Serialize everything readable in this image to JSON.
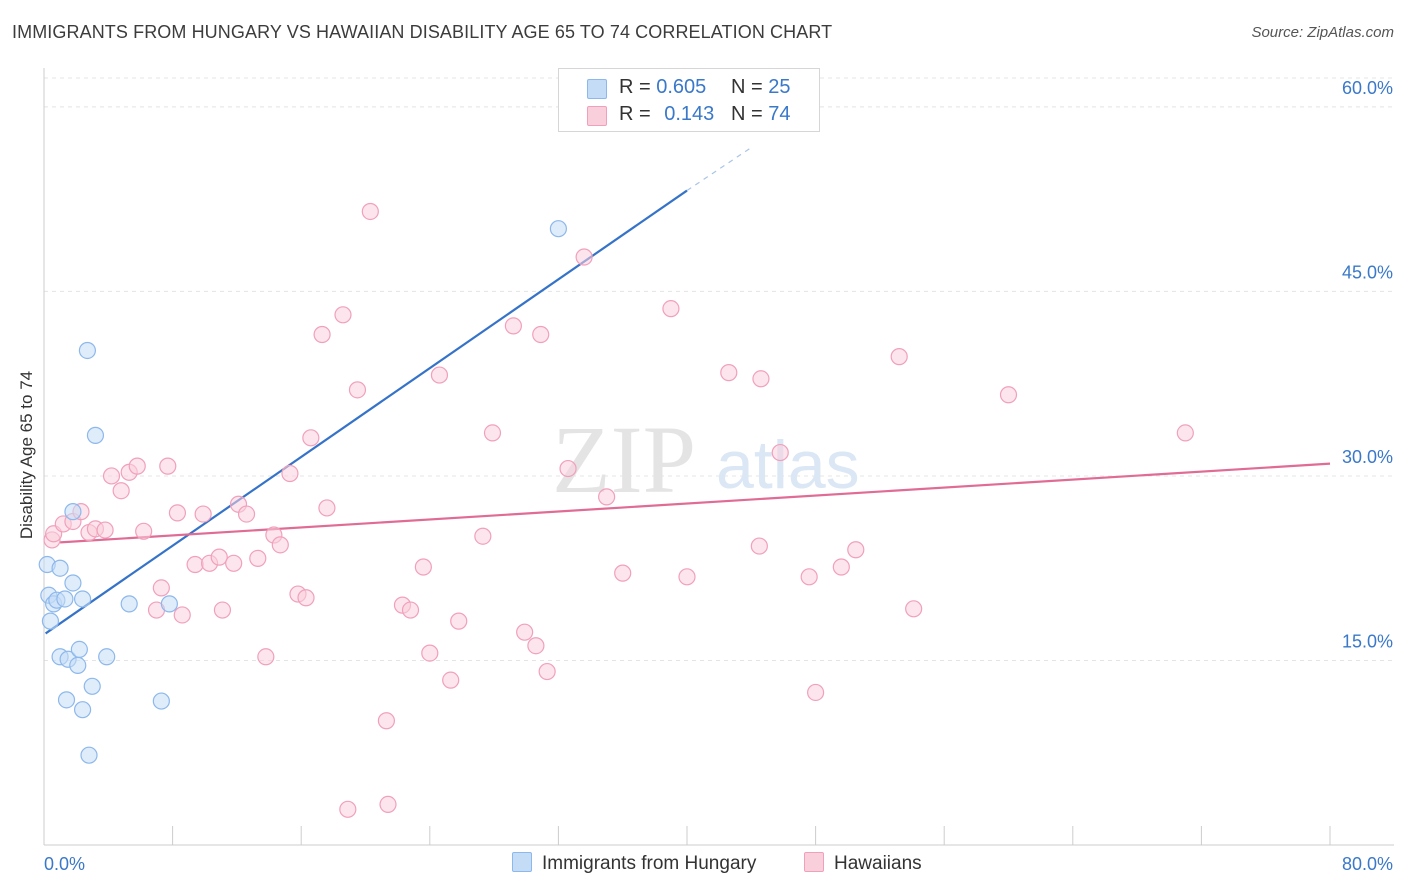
{
  "title": "IMMIGRANTS FROM HUNGARY VS HAWAIIAN DISABILITY AGE 65 TO 74 CORRELATION CHART",
  "source": "Source: ZipAtlas.com",
  "watermark": {
    "zip": "ZIP",
    "atlas": "atlas"
  },
  "legend": {
    "rows": [
      {
        "r_label": "R = ",
        "r_value": "0.605",
        "n_label": "N = ",
        "n_value": "25"
      },
      {
        "r_label": "R = ",
        "r_value": "0.143",
        "n_label": "N = ",
        "n_value": "74"
      }
    ]
  },
  "chart_data": {
    "type": "scatter",
    "title": "IMMIGRANTS FROM HUNGARY VS HAWAIIAN DISABILITY AGE 65 TO 74 CORRELATION CHART",
    "xlabel": "",
    "ylabel": "Disability Age 65 to 74",
    "xlim": [
      0,
      80
    ],
    "ylim": [
      0,
      63
    ],
    "x_tick_labels": [
      {
        "value": 0,
        "label": "0.0%"
      },
      {
        "value": 80,
        "label": "80.0%"
      }
    ],
    "x_minor_ticks": [
      0,
      8,
      16,
      24,
      32,
      40,
      48,
      56,
      64,
      72,
      80
    ],
    "y_ticks": [
      {
        "value": 15,
        "label": "15.0%"
      },
      {
        "value": 30,
        "label": "30.0%"
      },
      {
        "value": 45,
        "label": "45.0%"
      },
      {
        "value": 60,
        "label": "60.0%"
      }
    ],
    "grid": true,
    "legend_position": "bottom",
    "series": [
      {
        "name": "Immigrants from Hungary",
        "color": "#8db8ec",
        "fill": "#c5dcf6",
        "trend_color": "#3573c9",
        "trend": {
          "x0": 0.1,
          "y0": 17.2,
          "x1": 40.0,
          "y1": 53.2,
          "dash_to_x": 44.0,
          "dash_to_y": 56.7
        },
        "points": [
          [
            0.2,
            22.8
          ],
          [
            0.3,
            20.3
          ],
          [
            0.4,
            18.2
          ],
          [
            0.6,
            19.6
          ],
          [
            0.8,
            19.9
          ],
          [
            1.0,
            22.5
          ],
          [
            1.0,
            15.3
          ],
          [
            1.3,
            20.0
          ],
          [
            1.4,
            11.8
          ],
          [
            1.5,
            15.1
          ],
          [
            1.8,
            27.1
          ],
          [
            1.8,
            21.3
          ],
          [
            2.1,
            14.6
          ],
          [
            2.2,
            15.9
          ],
          [
            2.4,
            11.0
          ],
          [
            2.4,
            20.0
          ],
          [
            2.7,
            40.2
          ],
          [
            2.8,
            7.3
          ],
          [
            3.0,
            12.9
          ],
          [
            3.2,
            33.3
          ],
          [
            3.9,
            15.3
          ],
          [
            5.3,
            19.6
          ],
          [
            7.3,
            11.7
          ],
          [
            7.8,
            19.6
          ],
          [
            32.0,
            50.1
          ]
        ]
      },
      {
        "name": "Hawaiians",
        "color": "#f1a0bb",
        "fill": "#f9cfdc",
        "trend_color": "#e06b95",
        "trend": {
          "x0": 1.0,
          "y0": 24.6,
          "x1": 80.0,
          "y1": 31.0
        },
        "points": [
          [
            0.5,
            24.8
          ],
          [
            0.6,
            25.3
          ],
          [
            1.2,
            26.1
          ],
          [
            1.8,
            26.3
          ],
          [
            2.3,
            27.1
          ],
          [
            2.8,
            25.4
          ],
          [
            3.2,
            25.7
          ],
          [
            3.8,
            25.6
          ],
          [
            4.2,
            30.0
          ],
          [
            4.8,
            28.8
          ],
          [
            5.3,
            30.3
          ],
          [
            5.8,
            30.8
          ],
          [
            6.2,
            25.5
          ],
          [
            7.0,
            19.1
          ],
          [
            7.3,
            20.9
          ],
          [
            7.7,
            30.8
          ],
          [
            8.3,
            27.0
          ],
          [
            8.6,
            18.7
          ],
          [
            9.4,
            22.8
          ],
          [
            9.9,
            26.9
          ],
          [
            10.3,
            22.9
          ],
          [
            10.9,
            23.4
          ],
          [
            11.1,
            19.1
          ],
          [
            11.8,
            22.9
          ],
          [
            12.1,
            27.7
          ],
          [
            12.6,
            26.9
          ],
          [
            13.3,
            23.3
          ],
          [
            13.8,
            15.3
          ],
          [
            14.3,
            25.2
          ],
          [
            14.7,
            24.4
          ],
          [
            15.3,
            30.2
          ],
          [
            15.8,
            20.4
          ],
          [
            16.3,
            20.1
          ],
          [
            16.6,
            33.1
          ],
          [
            17.3,
            41.5
          ],
          [
            17.6,
            27.4
          ],
          [
            18.6,
            43.1
          ],
          [
            19.5,
            37.0
          ],
          [
            20.3,
            51.5
          ],
          [
            21.3,
            10.1
          ],
          [
            22.3,
            19.5
          ],
          [
            22.8,
            19.1
          ],
          [
            23.6,
            22.6
          ],
          [
            24.0,
            15.6
          ],
          [
            24.6,
            38.2
          ],
          [
            25.3,
            13.4
          ],
          [
            25.8,
            18.2
          ],
          [
            27.3,
            25.1
          ],
          [
            27.9,
            33.5
          ],
          [
            29.2,
            42.2
          ],
          [
            29.9,
            17.3
          ],
          [
            30.6,
            16.2
          ],
          [
            30.9,
            41.5
          ],
          [
            31.3,
            14.1
          ],
          [
            32.6,
            30.6
          ],
          [
            33.6,
            47.8
          ],
          [
            35.0,
            28.3
          ],
          [
            36.0,
            22.1
          ],
          [
            39.0,
            43.6
          ],
          [
            40.0,
            21.8
          ],
          [
            42.6,
            38.4
          ],
          [
            44.5,
            24.3
          ],
          [
            44.6,
            37.9
          ],
          [
            45.8,
            31.9
          ],
          [
            47.6,
            21.8
          ],
          [
            48.0,
            12.4
          ],
          [
            49.6,
            22.6
          ],
          [
            50.5,
            24.0
          ],
          [
            53.2,
            39.7
          ],
          [
            54.1,
            19.2
          ],
          [
            60.0,
            36.6
          ],
          [
            71.0,
            33.5
          ],
          [
            18.9,
            2.9
          ],
          [
            21.4,
            3.3
          ]
        ]
      }
    ]
  }
}
